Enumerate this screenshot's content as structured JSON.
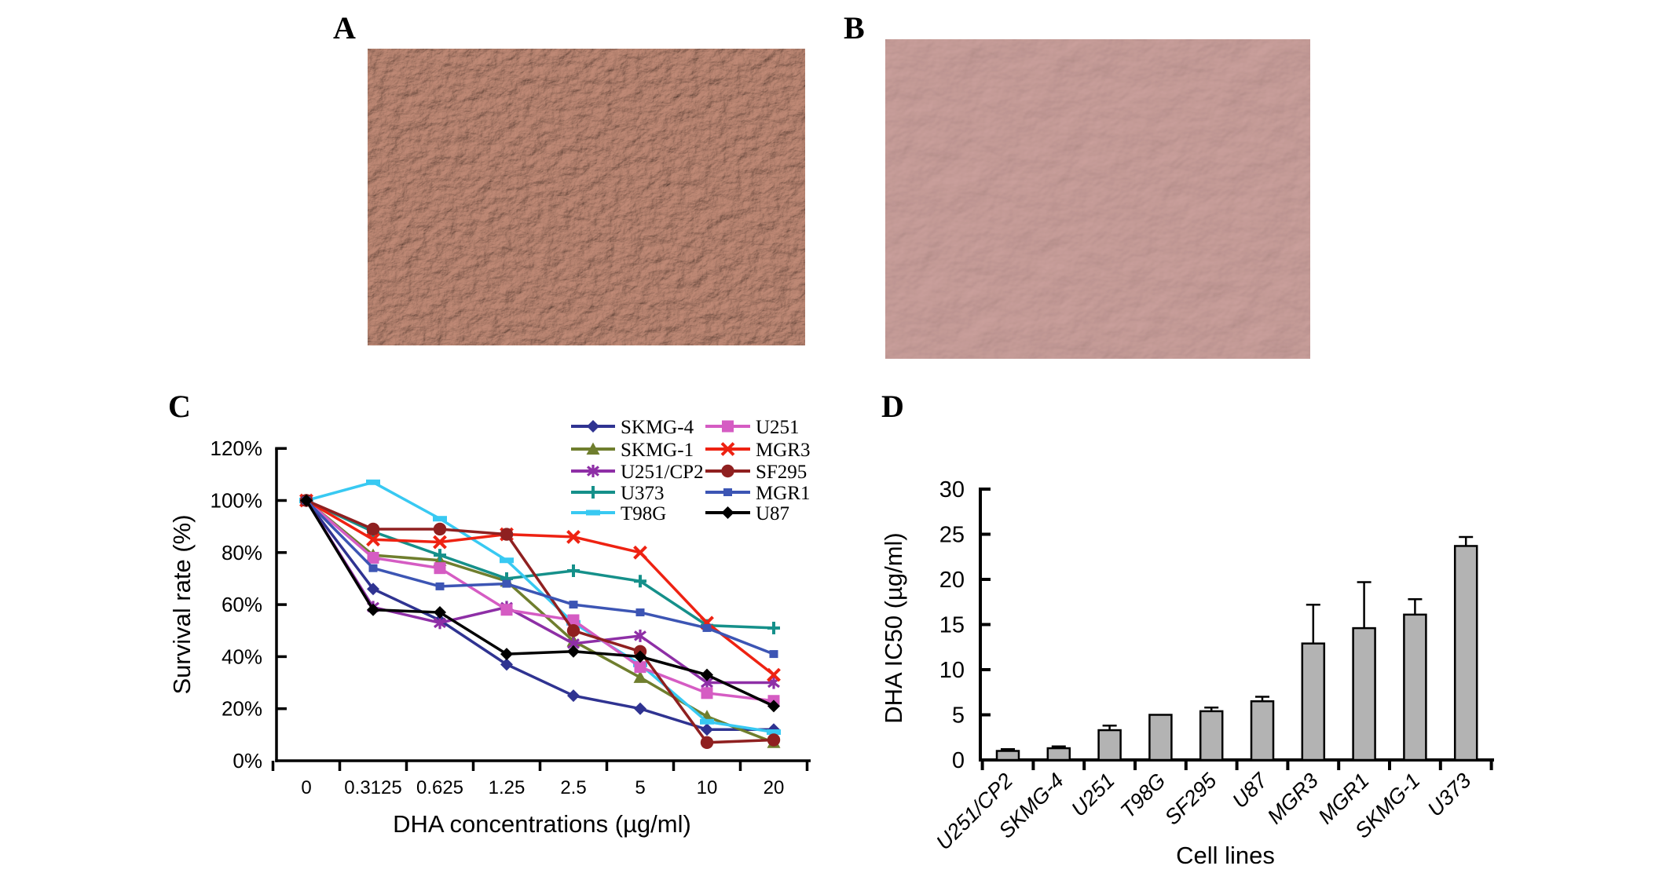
{
  "panels": {
    "a": {
      "label": "A",
      "base_color": "#c08a76"
    },
    "b": {
      "label": "B",
      "base_color": "#cda29e"
    },
    "c": {
      "label": "C"
    },
    "d": {
      "label": "D"
    }
  },
  "chart_data": [
    {
      "panel": "C",
      "type": "line",
      "title": "",
      "xlabel": "DHA concentrations (µg/ml)",
      "ylabel": "Survival rate (%)",
      "categories": [
        "0",
        "0.3125",
        "0.625",
        "1.25",
        "2.5",
        "5",
        "10",
        "20"
      ],
      "ylim": [
        0,
        120
      ],
      "yticks": [
        0,
        20,
        40,
        60,
        80,
        100,
        120
      ],
      "ytick_suffix": "%",
      "grid": false,
      "legend_position": "top-right-two-columns",
      "legend_rows": [
        [
          "SKMG-4",
          "U251"
        ],
        [
          "SKMG-1",
          "MGR3"
        ],
        [
          "U251/CP2",
          "SF295"
        ],
        [
          "U373",
          "MGR1"
        ],
        [
          "T98G",
          "U87"
        ]
      ],
      "series": [
        {
          "name": "SKMG-4",
          "color": "#2f3391",
          "marker": "diamond",
          "values": [
            100,
            66,
            54,
            37,
            25,
            20,
            12,
            12
          ]
        },
        {
          "name": "SKMG-1",
          "color": "#6f7e2e",
          "marker": "triangle",
          "values": [
            100,
            79,
            77,
            69,
            46,
            32,
            17,
            7
          ]
        },
        {
          "name": "U251/CP2",
          "color": "#8e2fa6",
          "marker": "asterisk",
          "values": [
            100,
            59,
            53,
            59,
            45,
            48,
            30,
            30
          ]
        },
        {
          "name": "U373",
          "color": "#15908a",
          "marker": "plus",
          "values": [
            100,
            88,
            79,
            70,
            73,
            69,
            52,
            51
          ]
        },
        {
          "name": "T98G",
          "color": "#38c9f2",
          "marker": "dash",
          "values": [
            100,
            107,
            93,
            77,
            53,
            37,
            15,
            11
          ]
        },
        {
          "name": "U251",
          "color": "#d55cc3",
          "marker": "square",
          "values": [
            100,
            78,
            74,
            58,
            54,
            36,
            26,
            23
          ]
        },
        {
          "name": "MGR3",
          "color": "#ee2212",
          "marker": "x",
          "values": [
            100,
            85,
            84,
            87,
            86,
            80,
            53,
            33
          ]
        },
        {
          "name": "SF295",
          "color": "#8f2020",
          "marker": "circle",
          "values": [
            100,
            89,
            89,
            87,
            50,
            42,
            7,
            8
          ]
        },
        {
          "name": "MGR1",
          "color": "#3c55b4",
          "marker": "square-small",
          "values": [
            100,
            74,
            67,
            68,
            60,
            57,
            51,
            41
          ]
        },
        {
          "name": "U87",
          "color": "#000000",
          "marker": "diamond",
          "values": [
            100,
            58,
            57,
            41,
            42,
            40,
            33,
            21
          ]
        }
      ]
    },
    {
      "panel": "D",
      "type": "bar",
      "title": "",
      "xlabel": "Cell lines",
      "ylabel": "DHA IC50 (µg/ml)",
      "ylim": [
        0,
        30
      ],
      "yticks": [
        0,
        5,
        10,
        15,
        20,
        25,
        30
      ],
      "bar_color": "#b3b3b3",
      "categories": [
        "U251/CP2",
        "SKMG-4",
        "U251",
        "T98G",
        "SF295",
        "U87",
        "MGR3",
        "MGR1",
        "SKMG-1",
        "U373"
      ],
      "values": [
        1.0,
        1.3,
        3.3,
        5.0,
        5.4,
        6.5,
        12.9,
        14.6,
        16.1,
        23.7
      ],
      "errors": [
        0.2,
        0.2,
        0.5,
        0,
        0.4,
        0.5,
        4.3,
        5.1,
        1.7,
        1.0
      ]
    }
  ]
}
